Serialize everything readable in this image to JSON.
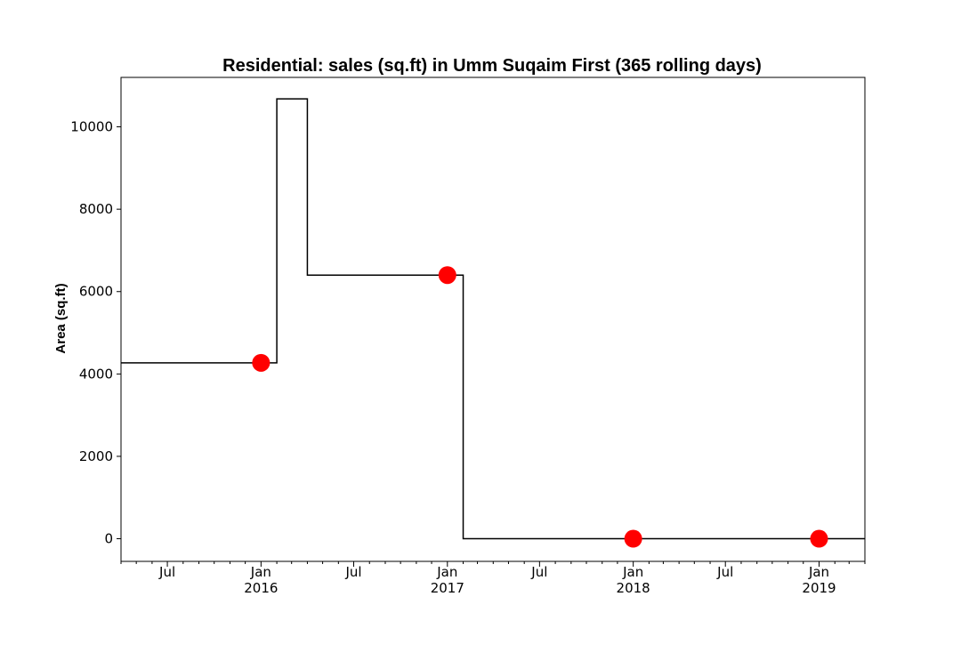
{
  "chart_data": {
    "type": "line",
    "title": "Residential: sales (sq.ft) in Umm Suqaim First (365 rolling days)",
    "xlabel": "",
    "ylabel": "Area (sq.ft)",
    "x_axis_type": "date",
    "xlim": [
      "2015-04-01",
      "2019-04-01"
    ],
    "ylim": [
      -550,
      11200
    ],
    "y_ticks": [
      0,
      2000,
      4000,
      6000,
      8000,
      10000
    ],
    "x_ticks": [
      {
        "date": "2015-07-01",
        "label": "Jul",
        "year": ""
      },
      {
        "date": "2016-01-01",
        "label": "Jan",
        "year": "2016"
      },
      {
        "date": "2016-07-01",
        "label": "Jul",
        "year": ""
      },
      {
        "date": "2017-01-01",
        "label": "Jan",
        "year": "2017"
      },
      {
        "date": "2017-07-01",
        "label": "Jul",
        "year": ""
      },
      {
        "date": "2018-01-01",
        "label": "Jan",
        "year": "2018"
      },
      {
        "date": "2018-07-01",
        "label": "Jul",
        "year": ""
      },
      {
        "date": "2019-01-01",
        "label": "Jan",
        "year": "2019"
      }
    ],
    "grid": false,
    "series": [
      {
        "style": "step",
        "color": "#000000",
        "points": [
          {
            "x": "2015-04-01",
            "y": 4270
          },
          {
            "x": "2016-02-01",
            "y": 10680
          },
          {
            "x": "2016-04-01",
            "y": 6400
          },
          {
            "x": "2017-02-01",
            "y": 0
          },
          {
            "x": "2019-04-01",
            "y": 0
          }
        ]
      },
      {
        "style": "markers",
        "color": "#ff0000",
        "points": [
          {
            "x": "2016-01-01",
            "y": 4270
          },
          {
            "x": "2017-01-01",
            "y": 6400
          },
          {
            "x": "2018-01-01",
            "y": 0
          },
          {
            "x": "2019-01-01",
            "y": 0
          }
        ]
      }
    ]
  }
}
